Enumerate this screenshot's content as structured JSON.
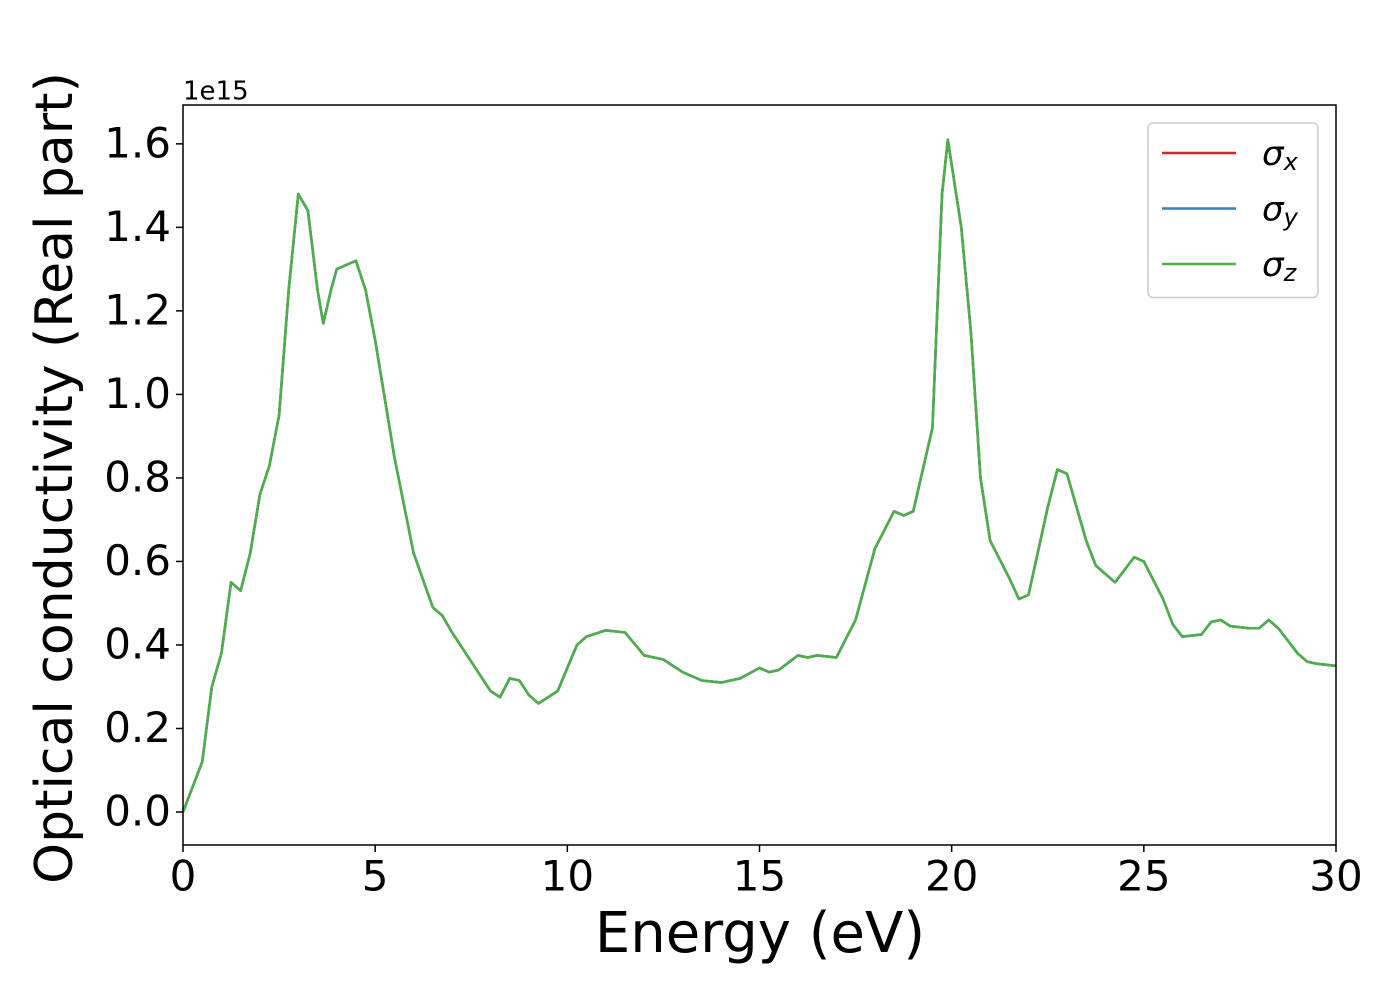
{
  "chart_data": {
    "type": "line",
    "xlabel": "Energy (eV)",
    "ylabel": "Optical conductivity (Real part)",
    "y_offset_label": "1e15",
    "x": [
      0,
      0.5,
      0.75,
      1.0,
      1.25,
      1.5,
      1.75,
      2.0,
      2.25,
      2.5,
      2.75,
      3.0,
      3.25,
      3.5,
      3.65,
      3.85,
      4.0,
      4.5,
      4.75,
      5.0,
      5.5,
      6.0,
      6.5,
      6.75,
      7.0,
      7.5,
      8.0,
      8.25,
      8.5,
      8.75,
      9.0,
      9.25,
      9.75,
      10.25,
      10.5,
      11.0,
      11.5,
      12.0,
      12.5,
      13.0,
      13.5,
      14.0,
      14.5,
      15.0,
      15.25,
      15.5,
      16.0,
      16.25,
      16.5,
      17.0,
      17.5,
      18.0,
      18.5,
      18.75,
      19.0,
      19.5,
      19.75,
      19.9,
      20.25,
      20.5,
      20.75,
      21.0,
      21.5,
      21.75,
      22.0,
      22.5,
      22.75,
      23.0,
      23.5,
      23.75,
      24.0,
      24.25,
      24.5,
      24.75,
      25.0,
      25.5,
      25.75,
      26.0,
      26.5,
      26.75,
      27.0,
      27.25,
      27.75,
      28.0,
      28.25,
      28.5,
      28.75,
      29.0,
      29.25,
      29.5,
      30.0
    ],
    "series": [
      {
        "name": "σx",
        "color": "#d62728",
        "values": [
          0.0,
          0.12,
          0.3,
          0.38,
          0.55,
          0.53,
          0.62,
          0.76,
          0.83,
          0.95,
          1.25,
          1.48,
          1.44,
          1.25,
          1.17,
          1.25,
          1.3,
          1.32,
          1.25,
          1.13,
          0.85,
          0.62,
          0.49,
          0.47,
          0.43,
          0.36,
          0.29,
          0.275,
          0.32,
          0.315,
          0.28,
          0.26,
          0.29,
          0.4,
          0.42,
          0.435,
          0.43,
          0.375,
          0.365,
          0.335,
          0.315,
          0.31,
          0.32,
          0.345,
          0.335,
          0.34,
          0.375,
          0.37,
          0.375,
          0.37,
          0.46,
          0.63,
          0.72,
          0.71,
          0.72,
          0.92,
          1.48,
          1.61,
          1.4,
          1.15,
          0.8,
          0.65,
          0.56,
          0.51,
          0.52,
          0.73,
          0.82,
          0.81,
          0.65,
          0.59,
          0.57,
          0.55,
          0.58,
          0.61,
          0.6,
          0.51,
          0.45,
          0.42,
          0.425,
          0.455,
          0.46,
          0.445,
          0.44,
          0.44,
          0.46,
          0.44,
          0.41,
          0.38,
          0.36,
          0.355,
          0.35
        ]
      },
      {
        "name": "σy",
        "color": "#377eb8",
        "values": [
          0.0,
          0.12,
          0.3,
          0.38,
          0.55,
          0.53,
          0.62,
          0.76,
          0.83,
          0.95,
          1.25,
          1.48,
          1.44,
          1.25,
          1.17,
          1.25,
          1.3,
          1.32,
          1.25,
          1.13,
          0.85,
          0.62,
          0.49,
          0.47,
          0.43,
          0.36,
          0.29,
          0.275,
          0.32,
          0.315,
          0.28,
          0.26,
          0.29,
          0.4,
          0.42,
          0.435,
          0.43,
          0.375,
          0.365,
          0.335,
          0.315,
          0.31,
          0.32,
          0.345,
          0.335,
          0.34,
          0.375,
          0.37,
          0.375,
          0.37,
          0.46,
          0.63,
          0.72,
          0.71,
          0.72,
          0.92,
          1.48,
          1.61,
          1.4,
          1.15,
          0.8,
          0.65,
          0.56,
          0.51,
          0.52,
          0.73,
          0.82,
          0.81,
          0.65,
          0.59,
          0.57,
          0.55,
          0.58,
          0.61,
          0.6,
          0.51,
          0.45,
          0.42,
          0.425,
          0.455,
          0.46,
          0.445,
          0.44,
          0.44,
          0.46,
          0.44,
          0.41,
          0.38,
          0.36,
          0.355,
          0.35
        ]
      },
      {
        "name": "σz",
        "color": "#4daf4a",
        "values": [
          0.0,
          0.12,
          0.3,
          0.38,
          0.55,
          0.53,
          0.62,
          0.76,
          0.83,
          0.95,
          1.25,
          1.48,
          1.44,
          1.25,
          1.17,
          1.25,
          1.3,
          1.32,
          1.25,
          1.13,
          0.85,
          0.62,
          0.49,
          0.47,
          0.43,
          0.36,
          0.29,
          0.275,
          0.32,
          0.315,
          0.28,
          0.26,
          0.29,
          0.4,
          0.42,
          0.435,
          0.43,
          0.375,
          0.365,
          0.335,
          0.315,
          0.31,
          0.32,
          0.345,
          0.335,
          0.34,
          0.375,
          0.37,
          0.375,
          0.37,
          0.46,
          0.63,
          0.72,
          0.71,
          0.72,
          0.92,
          1.48,
          1.61,
          1.4,
          1.15,
          0.8,
          0.65,
          0.56,
          0.51,
          0.52,
          0.73,
          0.82,
          0.81,
          0.65,
          0.59,
          0.57,
          0.55,
          0.58,
          0.61,
          0.6,
          0.51,
          0.45,
          0.42,
          0.425,
          0.455,
          0.46,
          0.445,
          0.44,
          0.44,
          0.46,
          0.44,
          0.41,
          0.38,
          0.36,
          0.355,
          0.35
        ]
      }
    ],
    "xlim": [
      0,
      30
    ],
    "xticks": [
      0,
      5,
      10,
      15,
      20,
      25,
      30
    ],
    "ylim": [
      -0.079,
      1.693
    ],
    "yticks": [
      {
        "value": 0,
        "label": "0.0"
      },
      0.2,
      0.4,
      0.6,
      0.8,
      {
        "value": 1,
        "label": "1.0"
      },
      1.2,
      1.4,
      1.6
    ],
    "grid": false,
    "legend": "upper right"
  }
}
